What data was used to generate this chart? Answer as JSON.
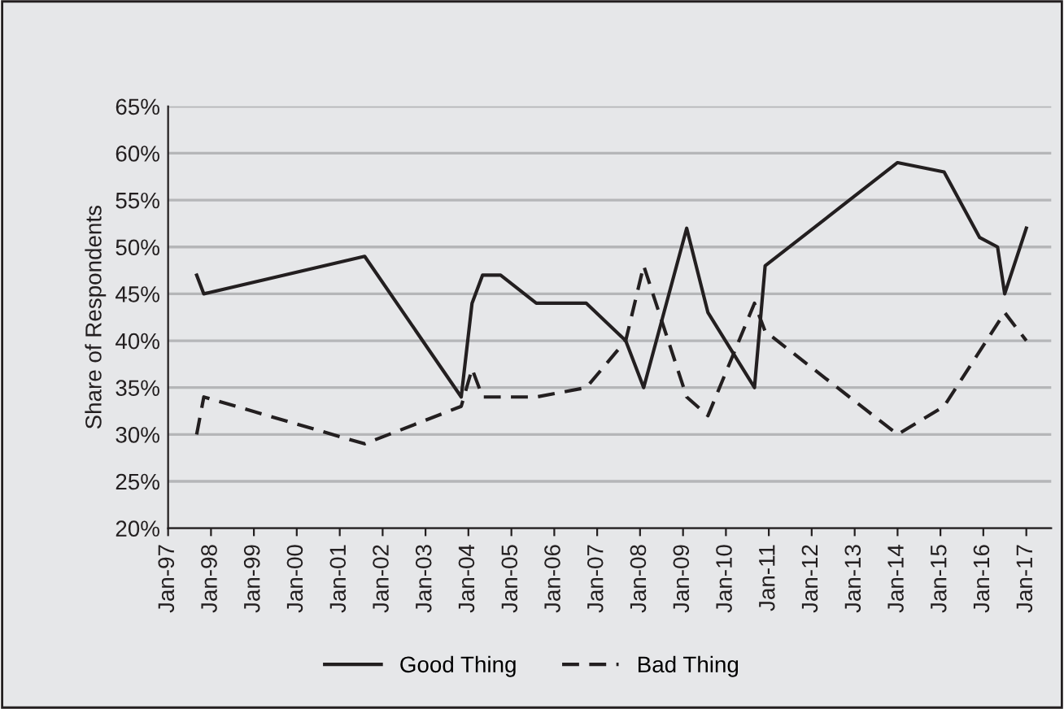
{
  "chart_data": {
    "type": "line",
    "ylabel": "Share of Respondents",
    "series": [
      {
        "name": "Good Thing",
        "color": "#231f20",
        "line_style": "solid",
        "x": [
          "1997-09",
          "1997-11",
          "2001-08",
          "2003-11",
          "2004-02",
          "2004-05",
          "2004-10",
          "2005-08",
          "2006-10",
          "2007-09",
          "2008-02",
          "2009-02",
          "2009-08",
          "2010-09",
          "2010-12",
          "2014-01",
          "2015-02",
          "2015-12",
          "2016-05",
          "2016-07",
          "2017-01"
        ],
        "values": [
          47,
          45,
          49,
          34,
          44,
          47,
          47,
          44,
          44,
          40,
          35,
          52,
          43,
          35,
          48,
          59,
          58,
          51,
          50,
          45,
          52
        ]
      },
      {
        "name": "Bad Thing",
        "color": "#231f20",
        "line_style": "dashed",
        "x": [
          "1997-09",
          "1997-11",
          "2001-08",
          "2003-11",
          "2004-02",
          "2004-05",
          "2005-08",
          "2006-10",
          "2007-09",
          "2008-02",
          "2009-02",
          "2009-08",
          "2010-09",
          "2010-12",
          "2014-01",
          "2015-02",
          "2016-07",
          "2017-01"
        ],
        "values": [
          30,
          34,
          29,
          33,
          37,
          34,
          34,
          35,
          40,
          48,
          34,
          32,
          44,
          41,
          30,
          33,
          43,
          40
        ]
      }
    ],
    "xlim": [
      "1997-01",
      "2017-08"
    ],
    "xticks": [
      {
        "value": "1997-01",
        "label": "Jan-97"
      },
      {
        "value": "1998-01",
        "label": "Jan-98"
      },
      {
        "value": "1999-01",
        "label": "Jan-99"
      },
      {
        "value": "2000-01",
        "label": "Jan-00"
      },
      {
        "value": "2001-01",
        "label": "Jan-01"
      },
      {
        "value": "2002-01",
        "label": "Jan-02"
      },
      {
        "value": "2003-01",
        "label": "Jan-03"
      },
      {
        "value": "2004-01",
        "label": "Jan-04"
      },
      {
        "value": "2005-01",
        "label": "Jan-05"
      },
      {
        "value": "2006-01",
        "label": "Jan-06"
      },
      {
        "value": "2007-01",
        "label": "Jan-07"
      },
      {
        "value": "2008-01",
        "label": "Jan-08"
      },
      {
        "value": "2009-01",
        "label": "Jan-09"
      },
      {
        "value": "2010-01",
        "label": "Jan-10"
      },
      {
        "value": "2011-01",
        "label": "Jan-11"
      },
      {
        "value": "2012-01",
        "label": "Jan-12"
      },
      {
        "value": "2013-01",
        "label": "Jan-13"
      },
      {
        "value": "2014-01",
        "label": "Jan-14"
      },
      {
        "value": "2015-01",
        "label": "Jan-15"
      },
      {
        "value": "2016-01",
        "label": "Jan-16"
      },
      {
        "value": "2017-01",
        "label": "Jan-17"
      }
    ],
    "ylim": [
      20,
      65
    ],
    "yticks": [
      {
        "value": 20,
        "label": "20%"
      },
      {
        "value": 25,
        "label": "25%"
      },
      {
        "value": 30,
        "label": "30%"
      },
      {
        "value": 35,
        "label": "35%"
      },
      {
        "value": 40,
        "label": "40%"
      },
      {
        "value": 45,
        "label": "45%"
      },
      {
        "value": 50,
        "label": "50%"
      },
      {
        "value": 55,
        "label": "55%"
      },
      {
        "value": 60,
        "label": "60%"
      },
      {
        "value": 65,
        "label": "65%"
      }
    ],
    "grid": "y",
    "legend": "bottom",
    "marker": "none"
  }
}
